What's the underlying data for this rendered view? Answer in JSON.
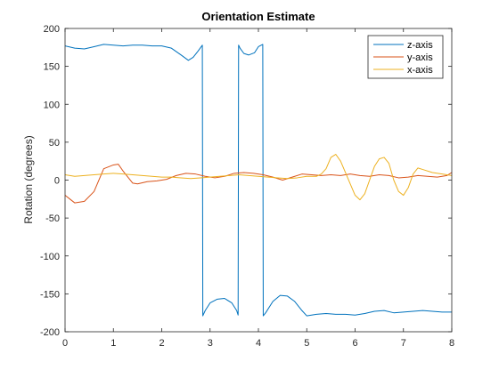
{
  "chart_data": {
    "type": "line",
    "title": "Orientation Estimate",
    "xlabel": "",
    "ylabel": "Rotation (degrees)",
    "xlim": [
      0,
      8
    ],
    "ylim": [
      -200,
      200
    ],
    "x_ticks": [
      0,
      1,
      2,
      3,
      4,
      5,
      6,
      7,
      8
    ],
    "y_ticks": [
      200,
      150,
      100,
      50,
      0,
      -50,
      -100,
      -150,
      -200
    ],
    "grid": false,
    "legend_position": "top-right",
    "series": [
      {
        "name": "z-axis",
        "color": "#0072BD",
        "x": [
          0,
          0.2,
          0.4,
          0.6,
          0.8,
          1.0,
          1.2,
          1.4,
          1.6,
          1.8,
          2.0,
          2.2,
          2.4,
          2.55,
          2.65,
          2.75,
          2.84,
          2.85,
          2.9,
          3.0,
          3.15,
          3.3,
          3.45,
          3.55,
          3.58,
          3.59,
          3.62,
          3.7,
          3.8,
          3.92,
          4.0,
          4.09,
          4.1,
          4.15,
          4.3,
          4.45,
          4.6,
          4.75,
          4.9,
          5.0,
          5.2,
          5.4,
          5.6,
          5.8,
          6.0,
          6.2,
          6.4,
          6.6,
          6.8,
          7.0,
          7.2,
          7.4,
          7.6,
          7.8,
          8.0
        ],
        "y": [
          177,
          174,
          173,
          176,
          179,
          178,
          177,
          178,
          178,
          177,
          177,
          174,
          165,
          158,
          162,
          170,
          178,
          -179,
          -172,
          -162,
          -157,
          -156,
          -162,
          -172,
          -178,
          178,
          174,
          167,
          165,
          168,
          176,
          179,
          -179,
          -175,
          -160,
          -152,
          -153,
          -160,
          -172,
          -179,
          -177,
          -176,
          -177,
          -177,
          -178,
          -176,
          -173,
          -172,
          -175,
          -174,
          -173,
          -172,
          -173,
          -174,
          -174
        ]
      },
      {
        "name": "y-axis",
        "color": "#D95319",
        "x": [
          0,
          0.1,
          0.2,
          0.4,
          0.6,
          0.8,
          1.0,
          1.1,
          1.2,
          1.4,
          1.5,
          1.7,
          1.9,
          2.1,
          2.3,
          2.5,
          2.7,
          2.9,
          3.1,
          3.3,
          3.5,
          3.7,
          3.9,
          4.1,
          4.3,
          4.5,
          4.7,
          4.9,
          5.1,
          5.3,
          5.5,
          5.7,
          5.9,
          6.1,
          6.3,
          6.5,
          6.7,
          6.9,
          7.1,
          7.3,
          7.5,
          7.7,
          7.9,
          8.0
        ],
        "y": [
          -20,
          -25,
          -30,
          -28,
          -15,
          15,
          20,
          21,
          12,
          -4,
          -5,
          -2,
          -1,
          1,
          6,
          9,
          8,
          5,
          3,
          5,
          9,
          10,
          9,
          7,
          4,
          0,
          4,
          8,
          7,
          6,
          7,
          6,
          8,
          6,
          5,
          7,
          6,
          3,
          4,
          6,
          5,
          4,
          6,
          10
        ]
      },
      {
        "name": "x-axis",
        "color": "#EDB120",
        "x": [
          0,
          0.2,
          0.4,
          0.6,
          0.8,
          1.0,
          1.2,
          1.4,
          1.6,
          1.8,
          2.0,
          2.2,
          2.4,
          2.6,
          2.8,
          3.0,
          3.2,
          3.4,
          3.6,
          3.8,
          4.0,
          4.2,
          4.4,
          4.6,
          4.8,
          5.0,
          5.2,
          5.3,
          5.4,
          5.5,
          5.6,
          5.7,
          5.8,
          5.9,
          6.0,
          6.1,
          6.2,
          6.3,
          6.4,
          6.5,
          6.6,
          6.7,
          6.8,
          6.9,
          7.0,
          7.1,
          7.2,
          7.3,
          7.4,
          7.6,
          7.8,
          8.0
        ],
        "y": [
          7,
          5,
          6,
          7,
          8,
          9,
          8,
          7,
          6,
          5,
          4,
          4,
          3,
          2,
          3,
          4,
          5,
          6,
          7,
          6,
          5,
          4,
          3,
          2,
          3,
          5,
          5,
          8,
          15,
          30,
          34,
          25,
          10,
          -5,
          -20,
          -26,
          -18,
          0,
          18,
          28,
          30,
          22,
          0,
          -15,
          -20,
          -10,
          8,
          16,
          14,
          10,
          8,
          6
        ]
      }
    ]
  }
}
